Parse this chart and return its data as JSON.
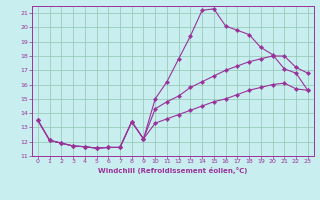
{
  "xlabel": "Windchill (Refroidissement éolien,°C)",
  "bg_color": "#c8eef0",
  "grid_color": "#99ccbb",
  "line_color": "#993399",
  "spine_color": "#993399",
  "xlim": [
    -0.5,
    23.5
  ],
  "ylim": [
    11,
    21.5
  ],
  "yticks": [
    11,
    12,
    13,
    14,
    15,
    16,
    17,
    18,
    19,
    20,
    21
  ],
  "xticks": [
    0,
    1,
    2,
    3,
    4,
    5,
    6,
    7,
    8,
    9,
    10,
    11,
    12,
    13,
    14,
    15,
    16,
    17,
    18,
    19,
    20,
    21,
    22,
    23
  ],
  "line1_x": [
    0,
    1,
    2,
    3,
    4,
    5,
    6,
    7,
    8,
    9,
    10,
    11,
    12,
    13,
    14,
    15,
    16,
    17,
    18,
    19,
    20,
    21,
    22,
    23
  ],
  "line1_y": [
    13.5,
    12.1,
    11.9,
    11.7,
    11.65,
    11.55,
    11.6,
    11.6,
    13.4,
    12.2,
    15.0,
    16.2,
    17.8,
    19.4,
    21.2,
    21.3,
    20.1,
    19.8,
    19.5,
    18.6,
    18.1,
    17.1,
    16.8,
    15.6
  ],
  "line2_x": [
    0,
    1,
    2,
    3,
    4,
    5,
    6,
    7,
    8,
    9,
    10,
    11,
    12,
    13,
    14,
    15,
    16,
    17,
    18,
    19,
    20,
    21,
    22,
    23
  ],
  "line2_y": [
    13.5,
    12.1,
    11.9,
    11.7,
    11.65,
    11.55,
    11.6,
    11.6,
    13.4,
    12.2,
    14.3,
    14.8,
    15.2,
    15.8,
    16.2,
    16.6,
    17.0,
    17.3,
    17.6,
    17.8,
    18.0,
    18.0,
    17.2,
    16.8
  ],
  "line3_x": [
    0,
    1,
    2,
    3,
    4,
    5,
    6,
    7,
    8,
    9,
    10,
    11,
    12,
    13,
    14,
    15,
    16,
    17,
    18,
    19,
    20,
    21,
    22,
    23
  ],
  "line3_y": [
    13.5,
    12.1,
    11.9,
    11.7,
    11.65,
    11.55,
    11.6,
    11.6,
    13.4,
    12.2,
    13.3,
    13.6,
    13.9,
    14.2,
    14.5,
    14.8,
    15.0,
    15.3,
    15.6,
    15.8,
    16.0,
    16.1,
    15.7,
    15.6
  ]
}
